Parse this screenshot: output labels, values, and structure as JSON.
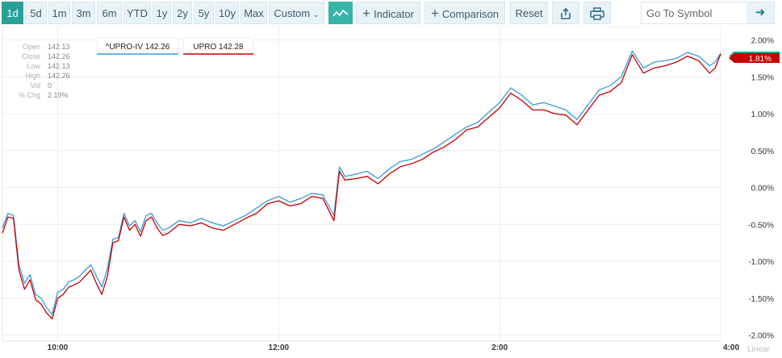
{
  "toolbar": {
    "ranges": [
      "1d",
      "5d",
      "1m",
      "3m",
      "6m",
      "YTD",
      "1y",
      "2y",
      "5y",
      "10y",
      "Max"
    ],
    "custom_label": "Custom",
    "indicator_label": "Indicator",
    "comparison_label": "Comparison",
    "reset_label": "Reset",
    "symbol_placeholder": "Go To Symbol",
    "accent_color": "#2aa198"
  },
  "ohlc": {
    "labels": [
      "Open",
      "Close",
      "Low",
      "High",
      "Vol",
      "% Chg"
    ],
    "values": [
      "142.13",
      "142.26",
      "142.13",
      "142.26",
      "0",
      "2.19%"
    ]
  },
  "legend": [
    {
      "label": "^UPRO-IV 142.26",
      "color": "#3a9ad9"
    },
    {
      "label": "UPRO 142.28",
      "color": "#c40000"
    }
  ],
  "price_tag": {
    "label": "1.81%",
    "color": "#c40000",
    "accent": "#2aa198"
  },
  "scale_label": "Linear",
  "chart_data": {
    "type": "line",
    "y_unit": "%",
    "ylim": [
      -2.0,
      2.0
    ],
    "y_ticks": [
      2.0,
      1.5,
      1.0,
      0.5,
      0.0,
      -0.5,
      -1.0,
      -1.5,
      -2.0
    ],
    "y_tick_labels": [
      "2.00%",
      "1.50%",
      "1.00%",
      "0.50%",
      "0.00%",
      "-0.50%",
      "-1.00%",
      "-1.50%",
      "-2.00%"
    ],
    "x_ticks": [
      "10:00",
      "12:00",
      "2:00",
      "4:00"
    ],
    "x_tick_values": [
      10.0,
      12.0,
      14.0,
      16.0
    ],
    "xlim": [
      9.5,
      16.0
    ],
    "grid": true,
    "series": [
      {
        "name": "^UPRO-IV",
        "color": "#3a9ad9",
        "x": [
          9.5,
          9.55,
          9.6,
          9.65,
          9.7,
          9.75,
          9.8,
          9.85,
          9.9,
          9.95,
          10.0,
          10.05,
          10.1,
          10.15,
          10.2,
          10.25,
          10.3,
          10.35,
          10.4,
          10.45,
          10.5,
          10.55,
          10.6,
          10.65,
          10.7,
          10.75,
          10.8,
          10.85,
          10.9,
          10.95,
          11.0,
          11.1,
          11.2,
          11.3,
          11.4,
          11.5,
          11.6,
          11.7,
          11.8,
          11.9,
          12.0,
          12.1,
          12.2,
          12.3,
          12.4,
          12.5,
          12.55,
          12.6,
          12.7,
          12.8,
          12.9,
          13.0,
          13.1,
          13.2,
          13.3,
          13.4,
          13.5,
          13.6,
          13.7,
          13.8,
          13.9,
          14.0,
          14.1,
          14.2,
          14.3,
          14.4,
          14.5,
          14.6,
          14.7,
          14.8,
          14.9,
          15.0,
          15.1,
          15.2,
          15.3,
          15.4,
          15.5,
          15.6,
          15.7,
          15.8,
          15.9,
          15.95,
          16.0
        ],
        "y": [
          -0.55,
          -0.35,
          -0.38,
          -1.05,
          -1.3,
          -1.18,
          -1.45,
          -1.5,
          -1.63,
          -1.72,
          -1.42,
          -1.38,
          -1.28,
          -1.25,
          -1.2,
          -1.12,
          -1.05,
          -1.2,
          -1.35,
          -1.1,
          -0.7,
          -0.68,
          -0.35,
          -0.52,
          -0.45,
          -0.6,
          -0.38,
          -0.35,
          -0.48,
          -0.58,
          -0.55,
          -0.45,
          -0.48,
          -0.42,
          -0.48,
          -0.52,
          -0.45,
          -0.38,
          -0.28,
          -0.18,
          -0.12,
          -0.2,
          -0.15,
          -0.08,
          -0.1,
          -0.38,
          0.28,
          0.15,
          0.18,
          0.22,
          0.12,
          0.25,
          0.35,
          0.38,
          0.45,
          0.52,
          0.62,
          0.72,
          0.82,
          0.88,
          1.02,
          1.15,
          1.35,
          1.25,
          1.12,
          1.15,
          1.1,
          1.05,
          0.92,
          1.12,
          1.32,
          1.38,
          1.5,
          1.85,
          1.62,
          1.7,
          1.72,
          1.75,
          1.83,
          1.78,
          1.65,
          1.7,
          1.82
        ]
      },
      {
        "name": "UPRO",
        "color": "#c40000",
        "x": [
          9.5,
          9.55,
          9.6,
          9.65,
          9.7,
          9.75,
          9.8,
          9.85,
          9.9,
          9.95,
          10.0,
          10.05,
          10.1,
          10.15,
          10.2,
          10.25,
          10.3,
          10.35,
          10.4,
          10.45,
          10.5,
          10.55,
          10.6,
          10.65,
          10.7,
          10.75,
          10.8,
          10.85,
          10.9,
          10.95,
          11.0,
          11.1,
          11.2,
          11.3,
          11.4,
          11.5,
          11.6,
          11.7,
          11.8,
          11.9,
          12.0,
          12.1,
          12.2,
          12.3,
          12.4,
          12.5,
          12.55,
          12.6,
          12.7,
          12.8,
          12.9,
          13.0,
          13.1,
          13.2,
          13.3,
          13.4,
          13.5,
          13.6,
          13.7,
          13.8,
          13.9,
          14.0,
          14.1,
          14.2,
          14.3,
          14.4,
          14.5,
          14.6,
          14.7,
          14.8,
          14.9,
          15.0,
          15.1,
          15.2,
          15.3,
          15.4,
          15.5,
          15.6,
          15.7,
          15.8,
          15.9,
          15.95,
          16.0
        ],
        "y": [
          -0.62,
          -0.4,
          -0.42,
          -1.12,
          -1.38,
          -1.25,
          -1.52,
          -1.58,
          -1.7,
          -1.78,
          -1.5,
          -1.45,
          -1.35,
          -1.32,
          -1.28,
          -1.2,
          -1.12,
          -1.3,
          -1.45,
          -1.2,
          -0.75,
          -0.72,
          -0.4,
          -0.58,
          -0.5,
          -0.66,
          -0.45,
          -0.4,
          -0.55,
          -0.65,
          -0.62,
          -0.5,
          -0.52,
          -0.48,
          -0.55,
          -0.58,
          -0.5,
          -0.42,
          -0.35,
          -0.22,
          -0.18,
          -0.25,
          -0.22,
          -0.12,
          -0.15,
          -0.45,
          0.22,
          0.1,
          0.12,
          0.15,
          0.05,
          0.18,
          0.28,
          0.32,
          0.38,
          0.48,
          0.55,
          0.65,
          0.78,
          0.82,
          0.95,
          1.08,
          1.28,
          1.18,
          1.05,
          1.05,
          1.0,
          0.98,
          0.85,
          1.05,
          1.25,
          1.3,
          1.42,
          1.8,
          1.55,
          1.62,
          1.65,
          1.7,
          1.78,
          1.72,
          1.55,
          1.62,
          1.81
        ]
      }
    ]
  }
}
